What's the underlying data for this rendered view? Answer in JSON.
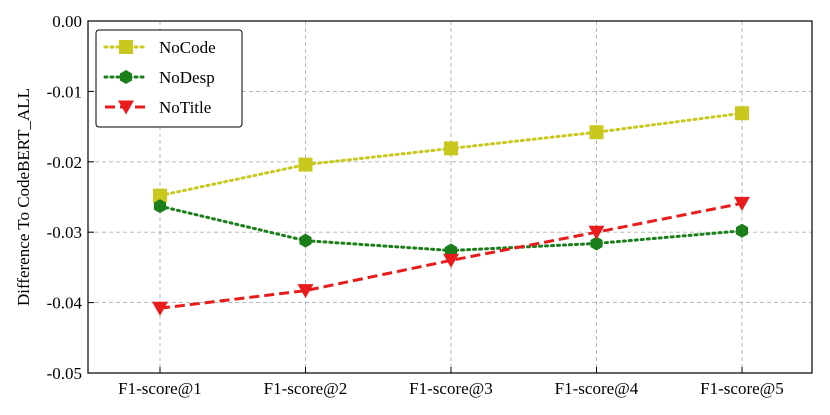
{
  "chart_data": {
    "type": "line",
    "categories": [
      "F1-score@1",
      "F1-score@2",
      "F1-score@3",
      "F1-score@4",
      "F1-score@5"
    ],
    "ylabel": "Difference To CodeBERT_ALL",
    "xlabel": "",
    "ylim": [
      -0.05,
      0.0
    ],
    "yticks": [
      0.0,
      -0.01,
      -0.02,
      -0.03,
      -0.04,
      -0.05
    ],
    "ytick_labels": [
      "0.00",
      "-0.01",
      "-0.02",
      "-0.03",
      "-0.04",
      "-0.05"
    ],
    "grid": true,
    "legend_position": "top-left",
    "series": [
      {
        "name": "NoCode",
        "values": [
          -0.0248,
          -0.0204,
          -0.0181,
          -0.0158,
          -0.0131
        ],
        "color": "#c8c81e",
        "line_style": "dotted",
        "marker": "square"
      },
      {
        "name": "NoDesp",
        "values": [
          -0.0263,
          -0.0312,
          -0.0326,
          -0.0316,
          -0.0298
        ],
        "color": "#1a7f1a",
        "line_style": "dotted",
        "marker": "hexagon"
      },
      {
        "name": "NoTitle",
        "values": [
          -0.0408,
          -0.0383,
          -0.034,
          -0.03,
          -0.0259
        ],
        "color": "#e81c1c",
        "line_style": "dashed",
        "marker": "triangle-down"
      }
    ]
  }
}
